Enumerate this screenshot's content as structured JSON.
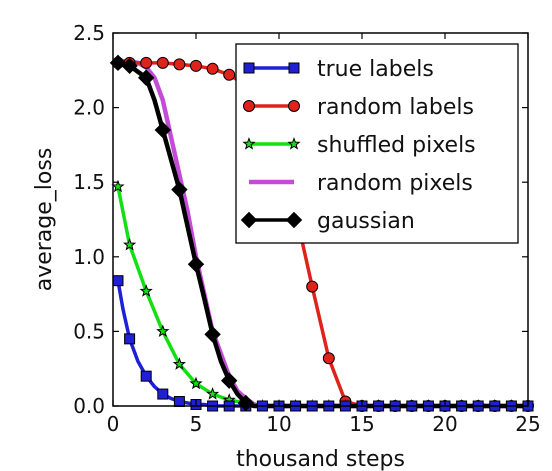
{
  "chart_data": {
    "type": "line",
    "xlabel": "thousand steps",
    "ylabel": "average_loss",
    "xlim": [
      0,
      25
    ],
    "ylim": [
      0,
      2.5
    ],
    "x_ticks": [
      0,
      5,
      10,
      15,
      20,
      25
    ],
    "y_ticks": [
      0.0,
      0.5,
      1.0,
      1.5,
      2.0,
      2.5
    ],
    "x_tick_labels": [
      "0",
      "5",
      "10",
      "15",
      "20",
      "25"
    ],
    "y_tick_labels": [
      "0.0",
      "0.5",
      "1.0",
      "1.5",
      "2.0",
      "2.5"
    ],
    "grid": false,
    "legend_position": "top-right",
    "series": [
      {
        "name": "true labels",
        "color": "#1f1fd6",
        "marker": "square",
        "x": [
          0.3,
          0.6,
          1.0,
          1.5,
          2.0,
          2.5,
          3.0,
          3.5,
          4.0,
          4.5,
          5.0,
          5.5,
          6.0,
          7.0,
          8.0,
          9.0,
          10.0,
          11.0,
          12.0,
          13.0,
          14.0,
          15.0,
          16.0,
          17.0,
          18.0,
          19.0,
          20.0,
          21.0,
          22.0,
          23.0,
          24.0,
          25.0
        ],
        "y": [
          0.84,
          0.65,
          0.45,
          0.3,
          0.2,
          0.13,
          0.08,
          0.05,
          0.03,
          0.02,
          0.01,
          0.01,
          0.0,
          0.0,
          0.0,
          0.0,
          0.0,
          0.0,
          0.0,
          0.0,
          0.0,
          0.0,
          0.0,
          0.0,
          0.0,
          0.0,
          0.0,
          0.0,
          0.0,
          0.0,
          0.0,
          0.0
        ],
        "marker_x": [
          0.3,
          1.0,
          2.0,
          3.0,
          4.0,
          5.0,
          6.0,
          7.0,
          8.0,
          9.0,
          10.0,
          11.0,
          12.0,
          13.0,
          14.0,
          15.0,
          16.0,
          17.0,
          18.0,
          19.0,
          20.0,
          21.0,
          22.0,
          23.0,
          24.0,
          25.0
        ]
      },
      {
        "name": "random labels",
        "color": "#e0231a",
        "marker": "circle",
        "x": [
          0.3,
          1.0,
          2.0,
          3.0,
          4.0,
          5.0,
          6.0,
          7.0,
          8.0,
          9.0,
          10.0,
          11.0,
          12.0,
          13.0,
          14.0,
          15.0,
          16.0,
          17.0,
          18.0,
          19.0,
          20.0,
          21.0,
          22.0,
          23.0,
          24.0,
          25.0
        ],
        "y": [
          2.3,
          2.3,
          2.3,
          2.3,
          2.29,
          2.28,
          2.26,
          2.22,
          2.15,
          2.05,
          1.75,
          1.3,
          0.8,
          0.32,
          0.03,
          0.0,
          0.0,
          0.0,
          0.0,
          0.0,
          0.0,
          0.0,
          0.0,
          0.0,
          0.0,
          0.0
        ],
        "marker_x": [
          0.3,
          1.0,
          2.0,
          3.0,
          4.0,
          5.0,
          6.0,
          7.0,
          8.0,
          9.0,
          10.0,
          11.0,
          12.0,
          13.0,
          14.0,
          15.0,
          16.0,
          17.0,
          18.0,
          19.0,
          20.0,
          21.0,
          22.0,
          23.0,
          24.0,
          25.0
        ]
      },
      {
        "name": "shuffled pixels",
        "color": "#12e012",
        "marker": "star",
        "x": [
          0.3,
          1.0,
          2.0,
          3.0,
          4.0,
          5.0,
          6.0,
          7.0,
          8.0,
          9.0,
          10.0,
          11.0,
          12.0,
          13.0,
          14.0,
          15.0,
          16.0,
          17.0,
          18.0,
          19.0,
          20.0,
          21.0,
          22.0,
          23.0,
          24.0,
          25.0
        ],
        "y": [
          1.47,
          1.08,
          0.77,
          0.5,
          0.28,
          0.15,
          0.08,
          0.04,
          0.02,
          0.0,
          0.0,
          0.0,
          0.0,
          0.0,
          0.0,
          0.0,
          0.0,
          0.0,
          0.0,
          0.0,
          0.0,
          0.0,
          0.0,
          0.0,
          0.0,
          0.0
        ],
        "marker_x": [
          0.3,
          1.0,
          2.0,
          3.0,
          4.0,
          5.0,
          6.0,
          7.0,
          8.0,
          9.0,
          10.0,
          11.0,
          12.0,
          13.0,
          14.0,
          15.0,
          16.0,
          17.0,
          18.0,
          19.0,
          20.0,
          21.0,
          22.0,
          23.0,
          24.0,
          25.0
        ]
      },
      {
        "name": "random pixels",
        "color": "#c34cd6",
        "marker": "none",
        "x": [
          0.3,
          1.0,
          1.5,
          2.0,
          2.5,
          3.0,
          3.5,
          4.0,
          4.5,
          5.0,
          5.5,
          6.0,
          6.5,
          7.0,
          7.5,
          8.0,
          8.5,
          9.0,
          10.0,
          25.0
        ],
        "y": [
          2.31,
          2.31,
          2.3,
          2.27,
          2.2,
          2.05,
          1.8,
          1.55,
          1.3,
          1.0,
          0.75,
          0.5,
          0.35,
          0.2,
          0.1,
          0.05,
          0.01,
          0.0,
          0.0,
          0.0
        ]
      },
      {
        "name": "gaussian",
        "color": "#000000",
        "marker": "diamond",
        "x": [
          0.3,
          1.0,
          2.0,
          2.5,
          3.0,
          3.5,
          4.0,
          4.5,
          5.0,
          5.5,
          6.0,
          6.5,
          7.0,
          7.5,
          8.0,
          8.5,
          9.0,
          10.0,
          25.0
        ],
        "y": [
          2.3,
          2.28,
          2.2,
          2.05,
          1.85,
          1.65,
          1.45,
          1.2,
          0.95,
          0.72,
          0.48,
          0.3,
          0.17,
          0.08,
          0.02,
          0.0,
          0.0,
          0.0,
          0.0
        ],
        "marker_x": [
          0.3,
          1.0,
          2.0,
          3.0,
          4.0,
          5.0,
          6.0,
          7.0,
          8.0
        ]
      }
    ]
  }
}
